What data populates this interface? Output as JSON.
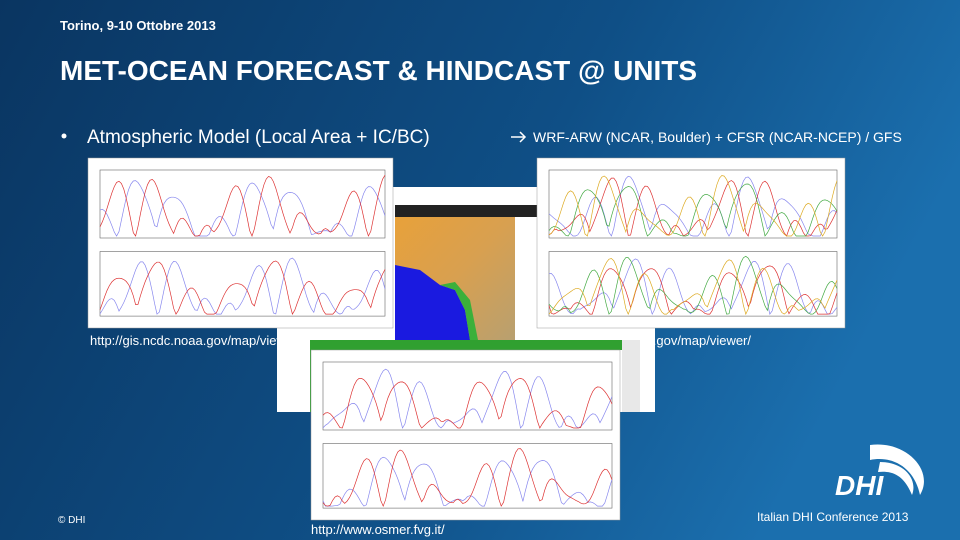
{
  "header": {
    "date": "Torino, 9-10 Ottobre 2013",
    "title": "MET-OCEAN FORECAST & HINDCAST @ UNITS"
  },
  "bullet": {
    "text": "Atmospheric Model (Local Area + IC/BC)",
    "detail": "WRF-ARW (NCAR, Boulder) + CFSR (NCAR-NCEP) / GFS"
  },
  "sources": {
    "left": "http://gis.ncdc.noaa.gov/map/viewer/",
    "right": "http://gis.ncdc.noaa.gov/map/viewer/",
    "bottom": "http://www.osmer.fvg.it/"
  },
  "footer": {
    "copyright": "© DHI",
    "logo": "DHI",
    "conference": "Italian DHI Conference 2013"
  }
}
